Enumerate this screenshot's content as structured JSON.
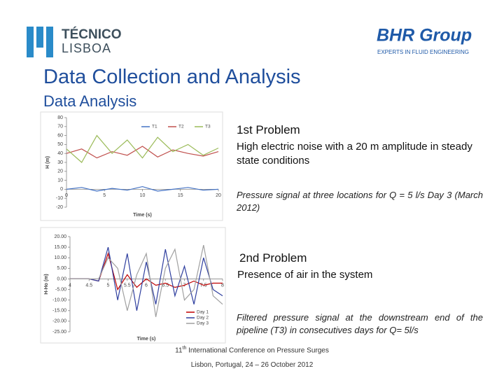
{
  "header": {
    "logo_left": {
      "name": "TÉCNICO",
      "sub": "LISBOA"
    },
    "logo_right": {
      "name": "BHR Group",
      "tagline": "EXPERTS IN FLUID ENGINEERING"
    }
  },
  "title": "Data Collection and Analysis",
  "subtitle": "Data Analysis",
  "charts": [
    {
      "type": "line",
      "xlabel": "Time (s)",
      "ylabel": "H (m)",
      "x": [
        0,
        2,
        4,
        6,
        8,
        10,
        12,
        14,
        16,
        18,
        20
      ],
      "series": [
        {
          "name": "T1",
          "color": "#4472c4",
          "values": [
            0,
            2,
            -2,
            1,
            -1,
            3,
            -2,
            0,
            2,
            -1,
            0
          ]
        },
        {
          "name": "T2",
          "color": "#c0504d",
          "values": [
            40,
            45,
            35,
            42,
            38,
            48,
            36,
            44,
            40,
            37,
            42
          ]
        },
        {
          "name": "T3",
          "color": "#9bbb59",
          "values": [
            45,
            30,
            60,
            40,
            55,
            35,
            58,
            42,
            50,
            38,
            46
          ]
        }
      ],
      "xlim": [
        0,
        20
      ],
      "ylim": [
        -20,
        80
      ],
      "xticks": [
        0,
        5,
        10,
        15,
        20
      ],
      "yticks": [
        -20,
        -10,
        0,
        10,
        20,
        30,
        40,
        50,
        60,
        70,
        80
      ],
      "legend": "top-right"
    },
    {
      "type": "line",
      "xlabel": "Time (s)",
      "ylabel": "H-Ho (m)",
      "x": [
        4,
        4.25,
        4.5,
        4.75,
        5,
        5.25,
        5.5,
        5.75,
        6,
        6.25,
        6.5,
        6.75,
        7,
        7.25,
        7.5,
        7.75,
        8
      ],
      "series": [
        {
          "name": "Day 1",
          "color": "#c00000",
          "values": [
            0,
            0,
            0,
            -1,
            12,
            -5,
            2,
            -4,
            0,
            -3,
            -2,
            -4,
            -3,
            -1,
            -3,
            -2,
            -2
          ]
        },
        {
          "name": "Day 2",
          "color": "#2f3f9f",
          "values": [
            0,
            0,
            0,
            -1,
            15,
            -10,
            12,
            -15,
            8,
            -12,
            14,
            -8,
            6,
            -12,
            10,
            -5,
            -8
          ]
        },
        {
          "name": "Day 3",
          "color": "#a0a0a0",
          "values": [
            0,
            0,
            0,
            0,
            10,
            5,
            -15,
            2,
            12,
            -18,
            5,
            14,
            -10,
            -5,
            16,
            -8,
            -12
          ]
        }
      ],
      "xlim": [
        4,
        8
      ],
      "ylim": [
        -25,
        20
      ],
      "xticks": [
        4,
        4.5,
        5,
        5.5,
        6,
        6.5,
        7,
        7.5,
        8
      ],
      "yticks": [
        {
          "value": -25,
          "label": "-25.00"
        },
        {
          "value": -20,
          "label": "-20.00"
        },
        {
          "value": -15,
          "label": "-15.00"
        },
        {
          "value": -10,
          "label": "-10.00"
        },
        {
          "value": -5,
          "label": "-5.00"
        },
        {
          "value": 0,
          "label": "0.00"
        },
        {
          "value": 5,
          "label": "5.00"
        },
        {
          "value": 10,
          "label": "10.00"
        },
        {
          "value": 15,
          "label": "15.00"
        },
        {
          "value": 20,
          "label": "20.00"
        }
      ],
      "legend": "bottom-right"
    }
  ],
  "sections": [
    {
      "heading": "1st Problem",
      "text": "High electric noise with a 20 m amplitude in steady state conditions",
      "caption": "Pressure signal at three locations for Q = 5 l/s Day 3 (March 2012)"
    },
    {
      "heading": "2nd Problem",
      "text": "Presence of air in the system",
      "caption": "Filtered pressure signal at the downstream end of the pipeline (T3) in consecutives days for Q= 5l/s"
    }
  ],
  "footer": {
    "ordinal": "11",
    "ordinal_suffix": "th",
    "conference": "International Conference on Pressure Surges",
    "place_date": "Lisbon, Portugal, 24 – 26 October 2012"
  }
}
